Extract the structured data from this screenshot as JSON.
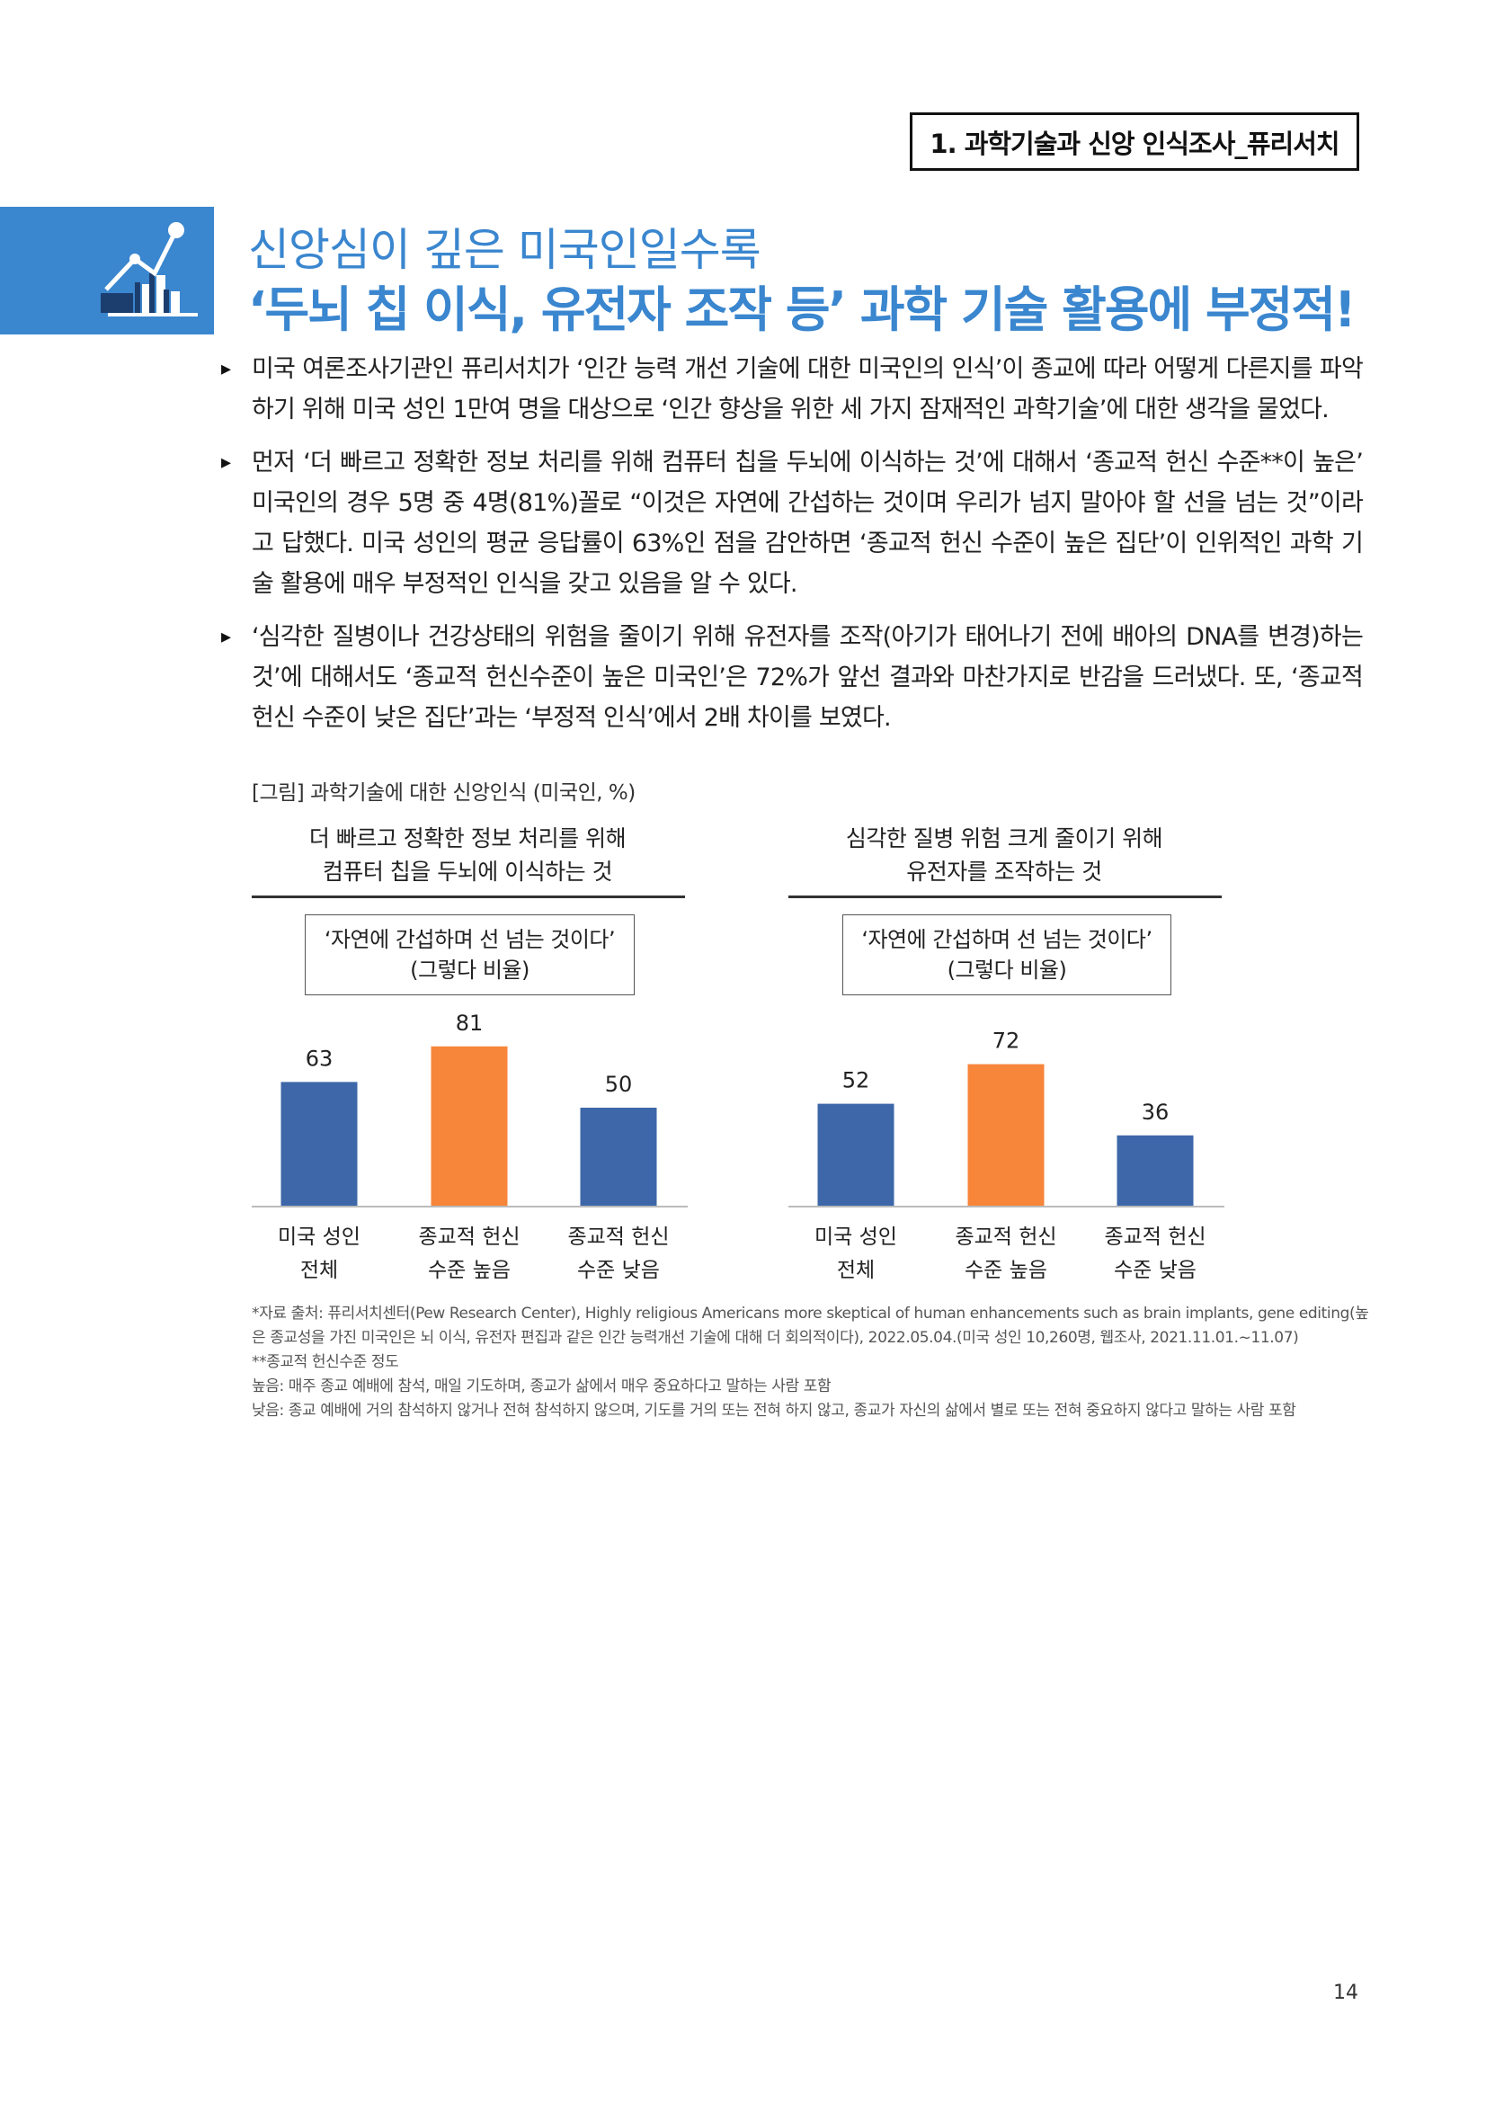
{
  "header": {
    "section_tag": "1. 과학기술과 신앙 인식조사_퓨리서치"
  },
  "title": {
    "line1": "신앙심이 깊은 미국인일수록",
    "line2": "‘두뇌 칩 이식, 유전자 조작 등’ 과학 기술 활용에 부정적!"
  },
  "colors": {
    "accent": "#3a86cf",
    "bar_blue": "#3d67a8",
    "bar_orange": "#f7853a"
  },
  "body": {
    "bullets": [
      "미국 여론조사기관인 퓨리서치가 ‘인간 능력 개선 기술에 대한 미국인의 인식’이 종교에 따라 어떻게 다른지를 파악하기 위해 미국 성인 1만여 명을 대상으로 ‘인간 향상을 위한 세 가지 잠재적인 과학기술’에 대한 생각을 물었다.",
      "먼저 ‘더 빠르고 정확한 정보 처리를 위해 컴퓨터 칩을 두뇌에 이식하는 것’에 대해서 ‘종교적 헌신 수준**이 높은’ 미국인의 경우 5명 중 4명(81%)꼴로 “이것은 자연에 간섭하는 것이며 우리가 넘지 말아야 할 선을 넘는 것”이라고 답했다. 미국 성인의 평균 응답률이 63%인 점을 감안하면 ‘종교적 헌신 수준이 높은 집단’이 인위적인 과학 기술 활용에 매우 부정적인 인식을 갖고 있음을 알 수 있다.",
      "‘심각한 질병이나 건강상태의 위험을 줄이기 위해 유전자를 조작(아기가 태어나기 전에 배아의 DNA를 변경)하는 것’에 대해서도 ‘종교적 헌신수준이 높은 미국인’은 72%가 앞선 결과와 마찬가지로 반감을 드러냈다. 또, ‘종교적 헌신 수준이 낮은 집단’과는 ‘부정적 인식’에서 2배 차이를 보였다."
    ]
  },
  "figure": {
    "caption": "[그림] 과학기술에 대한 신앙인식 (미국인, %)"
  },
  "chart_data": [
    {
      "type": "bar",
      "title": [
        "더 빠르고 정확한 정보 처리를 위해",
        "컴퓨터 칩을 두뇌에 이식하는 것"
      ],
      "subtitle": [
        "‘자연에 간섭하며 선 넘는 것이다’",
        "(그렇다 비율)"
      ],
      "categories": [
        [
          "미국 성인",
          "전체"
        ],
        [
          "종교적 헌신",
          "수준 높음"
        ],
        [
          "종교적 헌신",
          "수준 낮음"
        ]
      ],
      "values": [
        63,
        81,
        50
      ],
      "ylim": [
        0,
        100
      ],
      "grid": false
    },
    {
      "type": "bar",
      "title": [
        "심각한 질병 위험 크게 줄이기 위해",
        "유전자를 조작하는 것"
      ],
      "subtitle": [
        "‘자연에 간섭하며 선 넘는 것이다’",
        "(그렇다 비율)"
      ],
      "categories": [
        [
          "미국 성인",
          "전체"
        ],
        [
          "종교적 헌신",
          "수준 높음"
        ],
        [
          "종교적 헌신",
          "수준 낮음"
        ]
      ],
      "values": [
        52,
        72,
        36
      ],
      "ylim": [
        0,
        100
      ],
      "grid": false
    }
  ],
  "footnotes": [
    "*자료 출처: 퓨리서치센터(Pew Research Center), Highly religious Americans more skeptical of human enhancements such as brain implants, gene editing(높은 종교성을 가진 미국인은 뇌 이식, 유전자 편집과 같은 인간 능력개선 기술에 대해 더 회의적이다), 2022.05.04.(미국 성인 10,260명, 웹조사, 2021.11.01.~11.07)",
    "**종교적 헌신수준 정도",
    "높음: 매주 종교 예배에 참석, 매일 기도하며, 종교가 삶에서 매우 중요하다고 말하는 사람 포함",
    "낮음: 종교 예배에 거의 참석하지 않거나 전혀 참석하지 않으며, 기도를 거의 또는 전혀 하지 않고, 종교가 자신의 삶에서 별로 또는 전혀 중요하지 않다고 말하는 사람 포함"
  ],
  "page_number": "14"
}
